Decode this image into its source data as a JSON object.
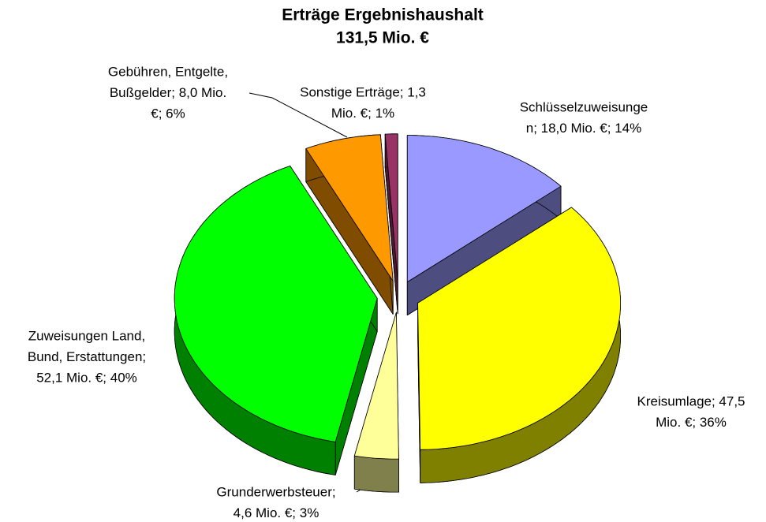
{
  "chart_data": {
    "type": "pie3d",
    "title": [
      "Erträge Ergebnishaushalt",
      "131,5 Mio. €"
    ],
    "labels": [
      [
        "Schlüsselzuweisunge",
        "n; 18,0 Mio. €; 14%"
      ],
      [
        "Kreisumlage; 47,5",
        "Mio. €; 36%"
      ],
      [
        "Grunderwerbsteuer;",
        "4,6 Mio. €; 3%"
      ],
      [
        "Zuweisungen Land,",
        "Bund, Erstattungen;",
        "52,1 Mio. €; 40%"
      ],
      [
        "Gebühren, Entgelte,",
        "Bußgelder; 8,0 Mio.",
        "€; 6%"
      ],
      [
        "Sonstige Erträge; 1,3",
        "Mio. €; 1%"
      ]
    ],
    "values": [
      18.0,
      47.5,
      4.6,
      52.1,
      8.0,
      1.3
    ],
    "colors": [
      "#9999ff",
      "#ffff00",
      "#ffff99",
      "#00ff00",
      "#ff9900",
      "#993366"
    ],
    "side_colors": [
      "#4d4d80",
      "#808000",
      "#80804d",
      "#008000",
      "#804d00",
      "#4d1a33"
    ]
  }
}
